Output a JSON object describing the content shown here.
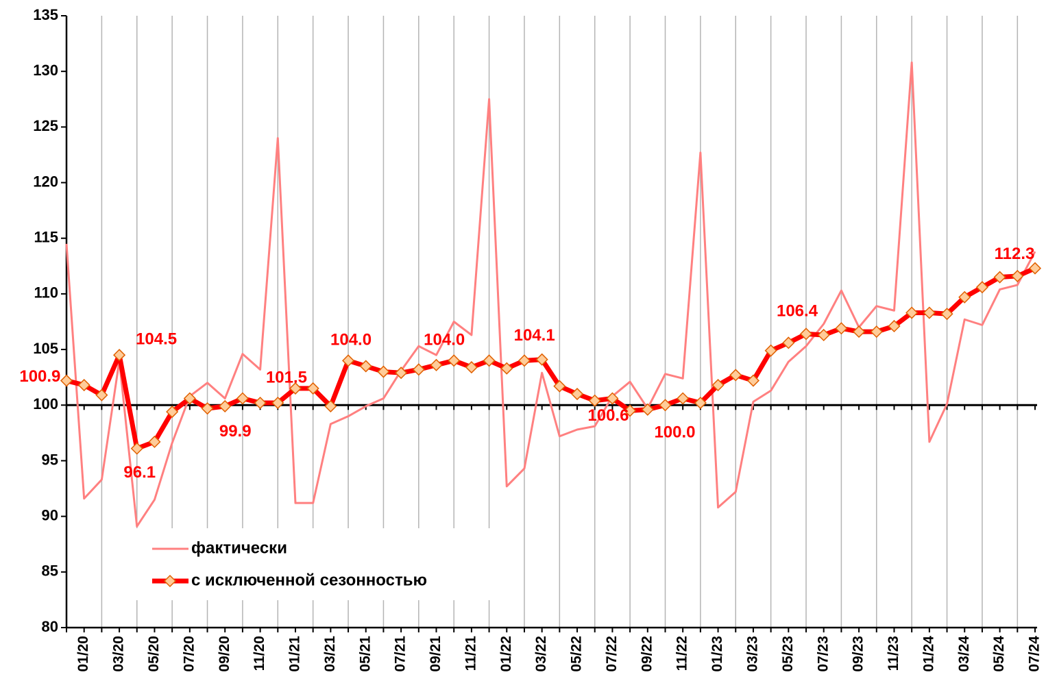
{
  "chart_data": {
    "type": "line",
    "categories": [
      null,
      "01/20",
      null,
      "03/20",
      null,
      "05/20",
      null,
      "07/20",
      null,
      "09/20",
      null,
      "11/20",
      null,
      "01/21",
      null,
      "03/21",
      null,
      "05/21",
      null,
      "07/21",
      null,
      "09/21",
      null,
      "11/21",
      null,
      "01/22",
      null,
      "03/22",
      null,
      "05/22",
      null,
      "07/22",
      null,
      "09/22",
      null,
      "11/22",
      null,
      "01/23",
      null,
      "03/23",
      null,
      "05/23",
      null,
      "07/23",
      null,
      "09/23",
      null,
      "11/23",
      null,
      "01/24",
      null,
      "03/24",
      null,
      "05/24",
      null,
      "07/24"
    ],
    "series": [
      {
        "name": "фактически",
        "color": "#ff8080",
        "values": [
          114.5,
          91.6,
          93.3,
          104.0,
          89.1,
          91.5,
          96.6,
          100.8,
          102.0,
          100.6,
          104.6,
          103.2,
          124.0,
          91.2,
          91.2,
          98.3,
          99.0,
          99.9,
          100.6,
          103.1,
          105.3,
          104.5,
          107.5,
          106.3,
          127.5,
          92.7,
          94.3,
          102.9,
          97.2,
          97.8,
          98.1,
          100.8,
          102.1,
          99.7,
          102.8,
          102.4,
          122.7,
          90.8,
          92.2,
          100.3,
          101.3,
          103.9,
          105.3,
          107.3,
          110.3,
          107.0,
          108.9,
          108.5,
          130.8,
          96.7,
          100.1,
          107.7,
          107.2,
          110.4,
          110.8,
          113.8
        ]
      },
      {
        "name": "с исключенной сезонностью",
        "color": "#ff0000",
        "marker_color": "#ffcc99",
        "values": [
          102.2,
          101.8,
          100.9,
          104.5,
          96.1,
          96.7,
          99.4,
          100.6,
          99.7,
          99.9,
          100.6,
          100.2,
          100.2,
          101.5,
          101.5,
          99.9,
          104.0,
          103.5,
          103.0,
          102.9,
          103.2,
          103.6,
          104.0,
          103.4,
          104.0,
          103.3,
          104.0,
          104.1,
          101.7,
          101.0,
          100.4,
          100.6,
          99.5,
          99.6,
          100.0,
          100.6,
          100.2,
          101.8,
          102.7,
          102.2,
          104.9,
          105.6,
          106.4,
          106.3,
          106.9,
          106.6,
          106.6,
          107.1,
          108.3,
          108.3,
          108.2,
          109.7,
          110.6,
          111.5,
          111.6,
          112.3
        ],
        "value_labels": [
          null,
          null,
          "100.9",
          "104.5",
          "96.1",
          null,
          null,
          null,
          null,
          "99.9",
          null,
          null,
          null,
          "101.5",
          null,
          null,
          "104.0",
          null,
          null,
          null,
          null,
          null,
          "104.0",
          null,
          null,
          null,
          null,
          "104.1",
          null,
          null,
          null,
          "100.6",
          null,
          null,
          "100.0",
          null,
          null,
          null,
          null,
          null,
          null,
          null,
          "106.4",
          null,
          null,
          null,
          null,
          null,
          null,
          null,
          null,
          null,
          null,
          null,
          null,
          "112.3"
        ]
      }
    ],
    "ylim": [
      80,
      135
    ],
    "yticks": [
      80,
      85,
      90,
      95,
      100,
      105,
      110,
      115,
      120,
      125,
      130,
      135
    ],
    "reference_line": 100,
    "grid": "x",
    "legend": "lower left"
  }
}
